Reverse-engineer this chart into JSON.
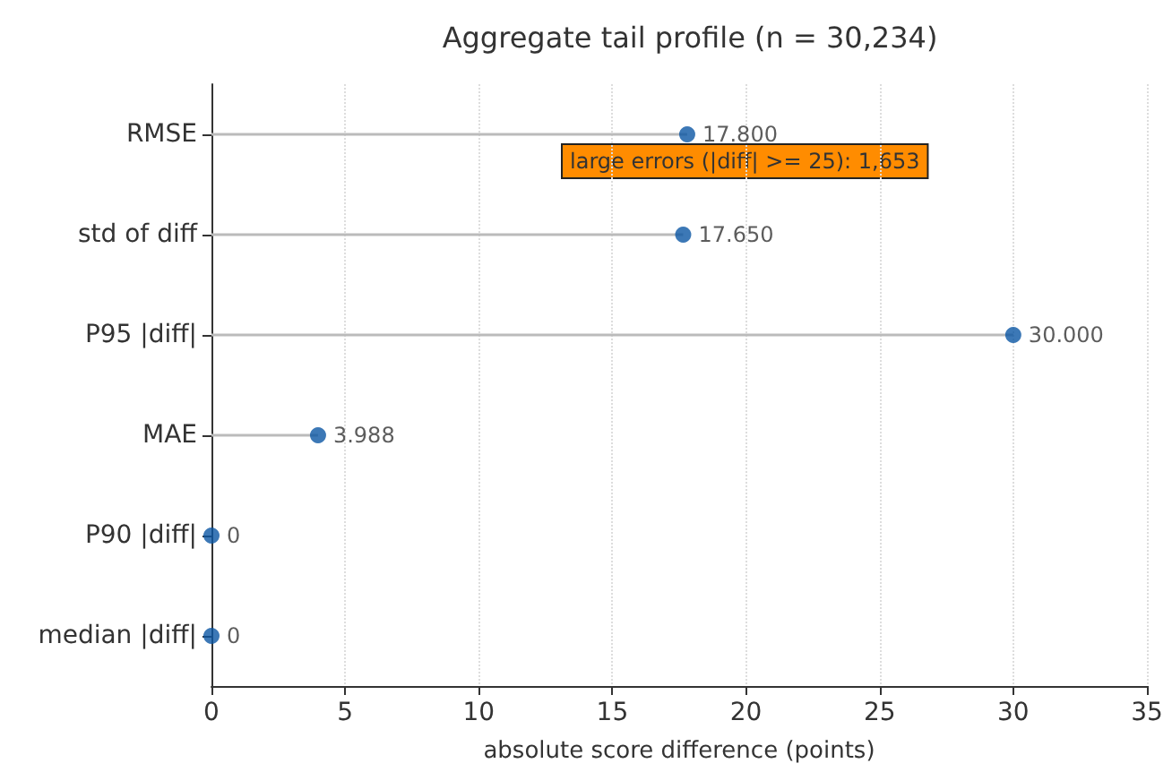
{
  "chart_data": {
    "type": "lollipop",
    "orientation": "horizontal",
    "title": "Aggregate tail profile (n = 30,234)",
    "xlabel": "absolute score difference (points)",
    "categories": [
      "RMSE",
      "std of diff",
      "P95 |diff|",
      "MAE",
      "P90 |diff|",
      "median |diff|"
    ],
    "series": [
      {
        "color": "#0b56a4",
        "values": [
          17.8,
          17.65,
          30,
          3.988,
          0,
          0
        ],
        "value_labels": [
          "17.800",
          "17.650",
          "30.000",
          "3.988",
          "0",
          "0"
        ]
      }
    ],
    "xlim": [
      0,
      35
    ],
    "xticks": [
      0,
      5,
      10,
      15,
      20,
      25,
      30,
      35
    ],
    "grid": "x",
    "marker": "circle",
    "annotations": [
      "large errors (|diff| >= 25): 1,653"
    ]
  }
}
